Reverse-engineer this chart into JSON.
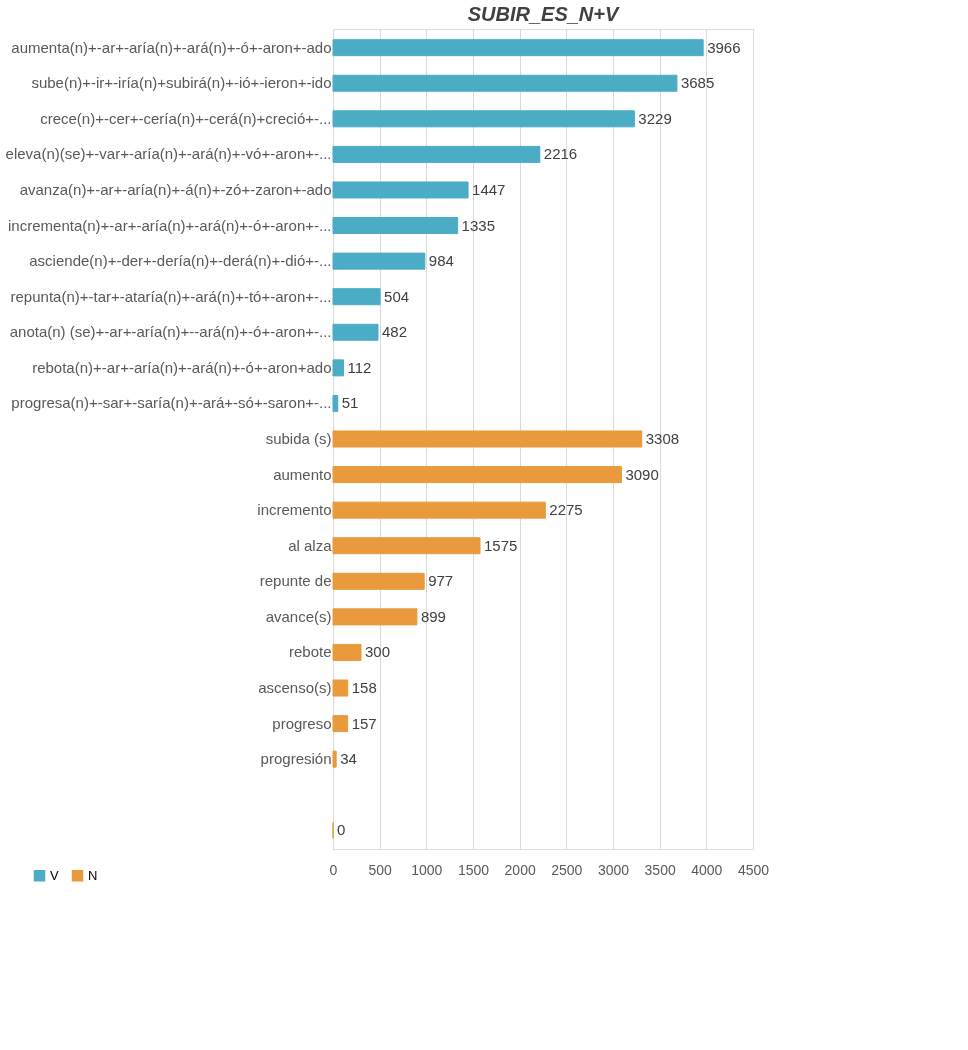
{
  "chart_data": {
    "type": "bar",
    "orientation": "horizontal",
    "title": "SUBIR_ES_N+V",
    "categories": [
      "aumenta(n)+-ar+-aría(n)+-ará(n)+-ó+-aron+-ado",
      "sube(n)+-ir+-iría(n)+subirá(n)+-ió+-ieron+-ido",
      "crece(n)+-cer+-cería(n)+-cerá(n)+creció+-...",
      "eleva(n)(se)+-var+-aría(n)+-ará(n)+-vó+-aron+-...",
      "avanza(n)+-ar+-aría(n)+-á(n)+-zó+-zaron+-ado",
      "incrementa(n)+-ar+-aría(n)+-ará(n)+-ó+-aron+-...",
      "asciende(n)+-der+-dería(n)+-derá(n)+-dió+-...",
      "repunta(n)+-tar+-ataría(n)+-ará(n)+-tó+-aron+-...",
      "anota(n) (se)+-ar+-aría(n)+--ará(n)+-ó+-aron+-...",
      "rebota(n)+-ar+-aría(n)+-ará(n)+-ó+-aron+ado",
      "progresa(n)+-sar+-saría(n)+-ará+-só+-saron+-...",
      "subida (s)",
      "aumento",
      "incremento",
      "al alza",
      "repunte de",
      "avance(s)",
      "rebote",
      "ascenso(s)",
      "progreso",
      "progresión",
      null,
      null
    ],
    "series": [
      {
        "name": "V",
        "color": "#4bacc6",
        "values": [
          3966,
          3685,
          3229,
          2216,
          1447,
          1335,
          984,
          504,
          482,
          112,
          51,
          null,
          null,
          null,
          null,
          null,
          null,
          null,
          null,
          null,
          null,
          null,
          null
        ]
      },
      {
        "name": "N",
        "color": "#e89a3c",
        "values": [
          null,
          null,
          null,
          null,
          null,
          null,
          null,
          null,
          null,
          null,
          null,
          3308,
          3090,
          2275,
          1575,
          977,
          899,
          300,
          158,
          157,
          34,
          null,
          0
        ]
      }
    ],
    "xlim": [
      0,
      4500
    ],
    "xticks": [
      0,
      500,
      1000,
      1500,
      2000,
      2500,
      3000,
      3500,
      4000,
      4500
    ],
    "grid": "x",
    "legend": "bottom left",
    "data_labels": true
  }
}
